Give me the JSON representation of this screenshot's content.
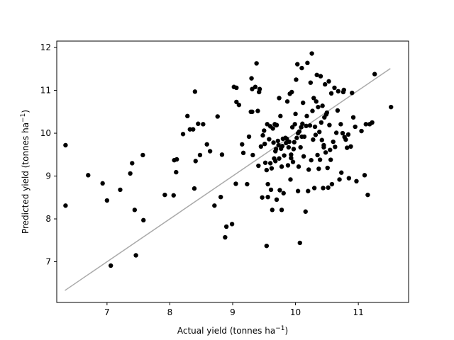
{
  "chart_data": {
    "type": "scatter",
    "title": "",
    "xlabel": "Actual yield (tonnes ha$^{-1}$)",
    "ylabel": "Predicted yield (tonnes ha$^{-1}$)",
    "xlabel_parts": {
      "text": "Actual yield (tonnes ha",
      "sup": "−1",
      "close": ")"
    },
    "ylabel_parts": {
      "text": "Predicted yield (tonnes ha",
      "sup": "−1",
      "close": ")"
    },
    "xlim": [
      6.2,
      11.8
    ],
    "ylim": [
      6.05,
      12.15
    ],
    "xticks": [
      7,
      8,
      9,
      10,
      11
    ],
    "yticks": [
      7,
      8,
      9,
      10,
      11,
      12
    ],
    "grid": false,
    "point_color": "#000000",
    "line_color": "#aaaaaa",
    "fit_line": {
      "x": [
        6.33,
        11.51
      ],
      "y": [
        6.33,
        11.51
      ]
    },
    "points": [
      [
        6.34,
        9.72
      ],
      [
        6.34,
        8.31
      ],
      [
        6.7,
        9.02
      ],
      [
        6.93,
        8.83
      ],
      [
        7.0,
        8.43
      ],
      [
        7.06,
        6.91
      ],
      [
        7.21,
        8.68
      ],
      [
        7.37,
        9.06
      ],
      [
        7.4,
        9.3
      ],
      [
        7.44,
        8.21
      ],
      [
        7.46,
        7.15
      ],
      [
        7.57,
        9.49
      ],
      [
        7.58,
        7.97
      ],
      [
        7.92,
        8.56
      ],
      [
        8.06,
        8.55
      ],
      [
        8.07,
        9.37
      ],
      [
        8.1,
        9.09
      ],
      [
        8.11,
        9.39
      ],
      [
        8.21,
        9.98
      ],
      [
        8.28,
        10.4
      ],
      [
        8.32,
        10.09
      ],
      [
        8.37,
        10.09
      ],
      [
        8.39,
        8.71
      ],
      [
        8.4,
        10.97
      ],
      [
        8.41,
        9.35
      ],
      [
        8.45,
        10.22
      ],
      [
        8.48,
        9.49
      ],
      [
        8.53,
        10.21
      ],
      [
        8.59,
        9.74
      ],
      [
        8.64,
        9.58
      ],
      [
        8.71,
        8.31
      ],
      [
        8.76,
        10.39
      ],
      [
        8.81,
        8.51
      ],
      [
        8.83,
        9.5
      ],
      [
        8.88,
        7.57
      ],
      [
        8.9,
        7.82
      ],
      [
        8.99,
        7.88
      ],
      [
        9.05,
        8.82
      ],
      [
        9.06,
        10.73
      ],
      [
        9.06,
        11.06
      ],
      [
        9.1,
        10.66
      ],
      [
        9.15,
        9.74
      ],
      [
        9.17,
        9.54
      ],
      [
        9.23,
        8.81
      ],
      [
        9.26,
        9.92
      ],
      [
        9.29,
        10.5
      ],
      [
        9.3,
        11.28
      ],
      [
        9.31,
        11.03
      ],
      [
        9.32,
        9.49
      ],
      [
        9.36,
        11.08
      ],
      [
        9.38,
        11.63
      ],
      [
        9.4,
        10.52
      ],
      [
        9.41,
        9.24
      ],
      [
        9.42,
        10.96
      ],
      [
        9.43,
        11.03
      ],
      [
        9.45,
        9.69
      ],
      [
        9.47,
        8.5
      ],
      [
        9.48,
        9.95
      ],
      [
        9.5,
        10.06
      ],
      [
        9.51,
        9.75
      ],
      [
        9.52,
        9.31
      ],
      [
        9.54,
        7.37
      ],
      [
        9.54,
        9.14
      ],
      [
        9.55,
        10.21
      ],
      [
        9.56,
        8.81
      ],
      [
        9.56,
        8.51
      ],
      [
        9.58,
        9.86
      ],
      [
        9.6,
        9.3
      ],
      [
        9.6,
        10.16
      ],
      [
        9.61,
        8.68
      ],
      [
        9.62,
        9.18
      ],
      [
        9.63,
        8.21
      ],
      [
        9.64,
        10.11
      ],
      [
        9.65,
        9.78
      ],
      [
        9.66,
        9.41
      ],
      [
        9.67,
        10.21
      ],
      [
        9.68,
        9.58
      ],
      [
        9.68,
        9.35
      ],
      [
        9.69,
        9.63
      ],
      [
        9.7,
        10.19
      ],
      [
        9.7,
        8.45
      ],
      [
        9.72,
        9.82
      ],
      [
        9.73,
        9.72
      ],
      [
        9.74,
        10.82
      ],
      [
        9.74,
        9.41
      ],
      [
        9.75,
        8.67
      ],
      [
        9.76,
        10.4
      ],
      [
        9.77,
        9.64
      ],
      [
        9.78,
        8.21
      ],
      [
        9.78,
        9.22
      ],
      [
        9.79,
        9.7
      ],
      [
        9.8,
        9.87
      ],
      [
        9.81,
        8.6
      ],
      [
        9.82,
        9.48
      ],
      [
        9.84,
        9.89
      ],
      [
        9.85,
        9.77
      ],
      [
        9.86,
        9.87
      ],
      [
        9.87,
        10.74
      ],
      [
        9.88,
        9.25
      ],
      [
        9.89,
        9.67
      ],
      [
        9.9,
        9.8
      ],
      [
        9.91,
        10.92
      ],
      [
        9.92,
        8.92
      ],
      [
        9.93,
        9.5
      ],
      [
        9.94,
        10.96
      ],
      [
        9.95,
        10.14
      ],
      [
        9.96,
        9.33
      ],
      [
        9.97,
        9.63
      ],
      [
        9.98,
        9.79
      ],
      [
        9.99,
        10.21
      ],
      [
        10.0,
        10.45
      ],
      [
        10.01,
        11.25
      ],
      [
        10.02,
        9.89
      ],
      [
        10.03,
        11.61
      ],
      [
        10.04,
        10.0
      ],
      [
        10.04,
        8.65
      ],
      [
        10.05,
        9.22
      ],
      [
        10.06,
        10.04
      ],
      [
        10.07,
        7.44
      ],
      [
        10.08,
        9.67
      ],
      [
        10.09,
        10.14
      ],
      [
        10.1,
        11.52
      ],
      [
        10.11,
        10.22
      ],
      [
        10.12,
        10.71
      ],
      [
        10.13,
        9.46
      ],
      [
        10.14,
        9.92
      ],
      [
        10.16,
        8.17
      ],
      [
        10.17,
        10.17
      ],
      [
        10.18,
        10.4
      ],
      [
        10.19,
        11.64
      ],
      [
        10.2,
        8.65
      ],
      [
        10.21,
        9.15
      ],
      [
        10.23,
        10.18
      ],
      [
        10.24,
        11.18
      ],
      [
        10.25,
        9.37
      ],
      [
        10.26,
        11.86
      ],
      [
        10.27,
        10.52
      ],
      [
        10.28,
        9.85
      ],
      [
        10.29,
        10.82
      ],
      [
        10.3,
        8.72
      ],
      [
        10.31,
        10.15
      ],
      [
        10.32,
        9.96
      ],
      [
        10.33,
        10.74
      ],
      [
        10.34,
        11.36
      ],
      [
        10.35,
        9.49
      ],
      [
        10.36,
        10.61
      ],
      [
        10.37,
        9.17
      ],
      [
        10.38,
        10.03
      ],
      [
        10.39,
        9.38
      ],
      [
        10.4,
        11.33
      ],
      [
        10.41,
        10.25
      ],
      [
        10.42,
        9.84
      ],
      [
        10.43,
        10.64
      ],
      [
        10.44,
        8.72
      ],
      [
        10.45,
        9.72
      ],
      [
        10.46,
        10.37
      ],
      [
        10.47,
        11.14
      ],
      [
        10.48,
        9.55
      ],
      [
        10.49,
        10.44
      ],
      [
        10.5,
        10.48
      ],
      [
        10.51,
        9.19
      ],
      [
        10.52,
        8.73
      ],
      [
        10.53,
        11.21
      ],
      [
        10.54,
        10.19
      ],
      [
        10.55,
        9.61
      ],
      [
        10.56,
        9.38
      ],
      [
        10.57,
        10.93
      ],
      [
        10.58,
        8.81
      ],
      [
        10.6,
        9.8
      ],
      [
        10.62,
        11.06
      ],
      [
        10.63,
        9.68
      ],
      [
        10.65,
        10.01
      ],
      [
        10.67,
        10.53
      ],
      [
        10.68,
        10.98
      ],
      [
        10.7,
        8.92
      ],
      [
        10.72,
        10.21
      ],
      [
        10.73,
        9.08
      ],
      [
        10.75,
        10.0
      ],
      [
        10.76,
        10.96
      ],
      [
        10.77,
        11.01
      ],
      [
        10.78,
        9.91
      ],
      [
        10.8,
        9.85
      ],
      [
        10.82,
        9.66
      ],
      [
        10.84,
        9.97
      ],
      [
        10.85,
        8.95
      ],
      [
        10.88,
        9.69
      ],
      [
        10.9,
        10.94
      ],
      [
        10.92,
        10.37
      ],
      [
        10.95,
        10.15
      ],
      [
        10.97,
        8.88
      ],
      [
        11.05,
        10.05
      ],
      [
        11.1,
        9.02
      ],
      [
        11.12,
        10.21
      ],
      [
        11.15,
        8.56
      ],
      [
        11.18,
        10.21
      ],
      [
        11.22,
        10.25
      ],
      [
        11.26,
        11.38
      ],
      [
        11.52,
        10.61
      ],
      [
        9.02,
        11.08
      ],
      [
        9.31,
        10.5
      ],
      [
        9.69,
        10.19
      ],
      [
        9.93,
        9.42
      ],
      [
        10.1,
        9.92
      ],
      [
        10.45,
        9.67
      ]
    ]
  }
}
